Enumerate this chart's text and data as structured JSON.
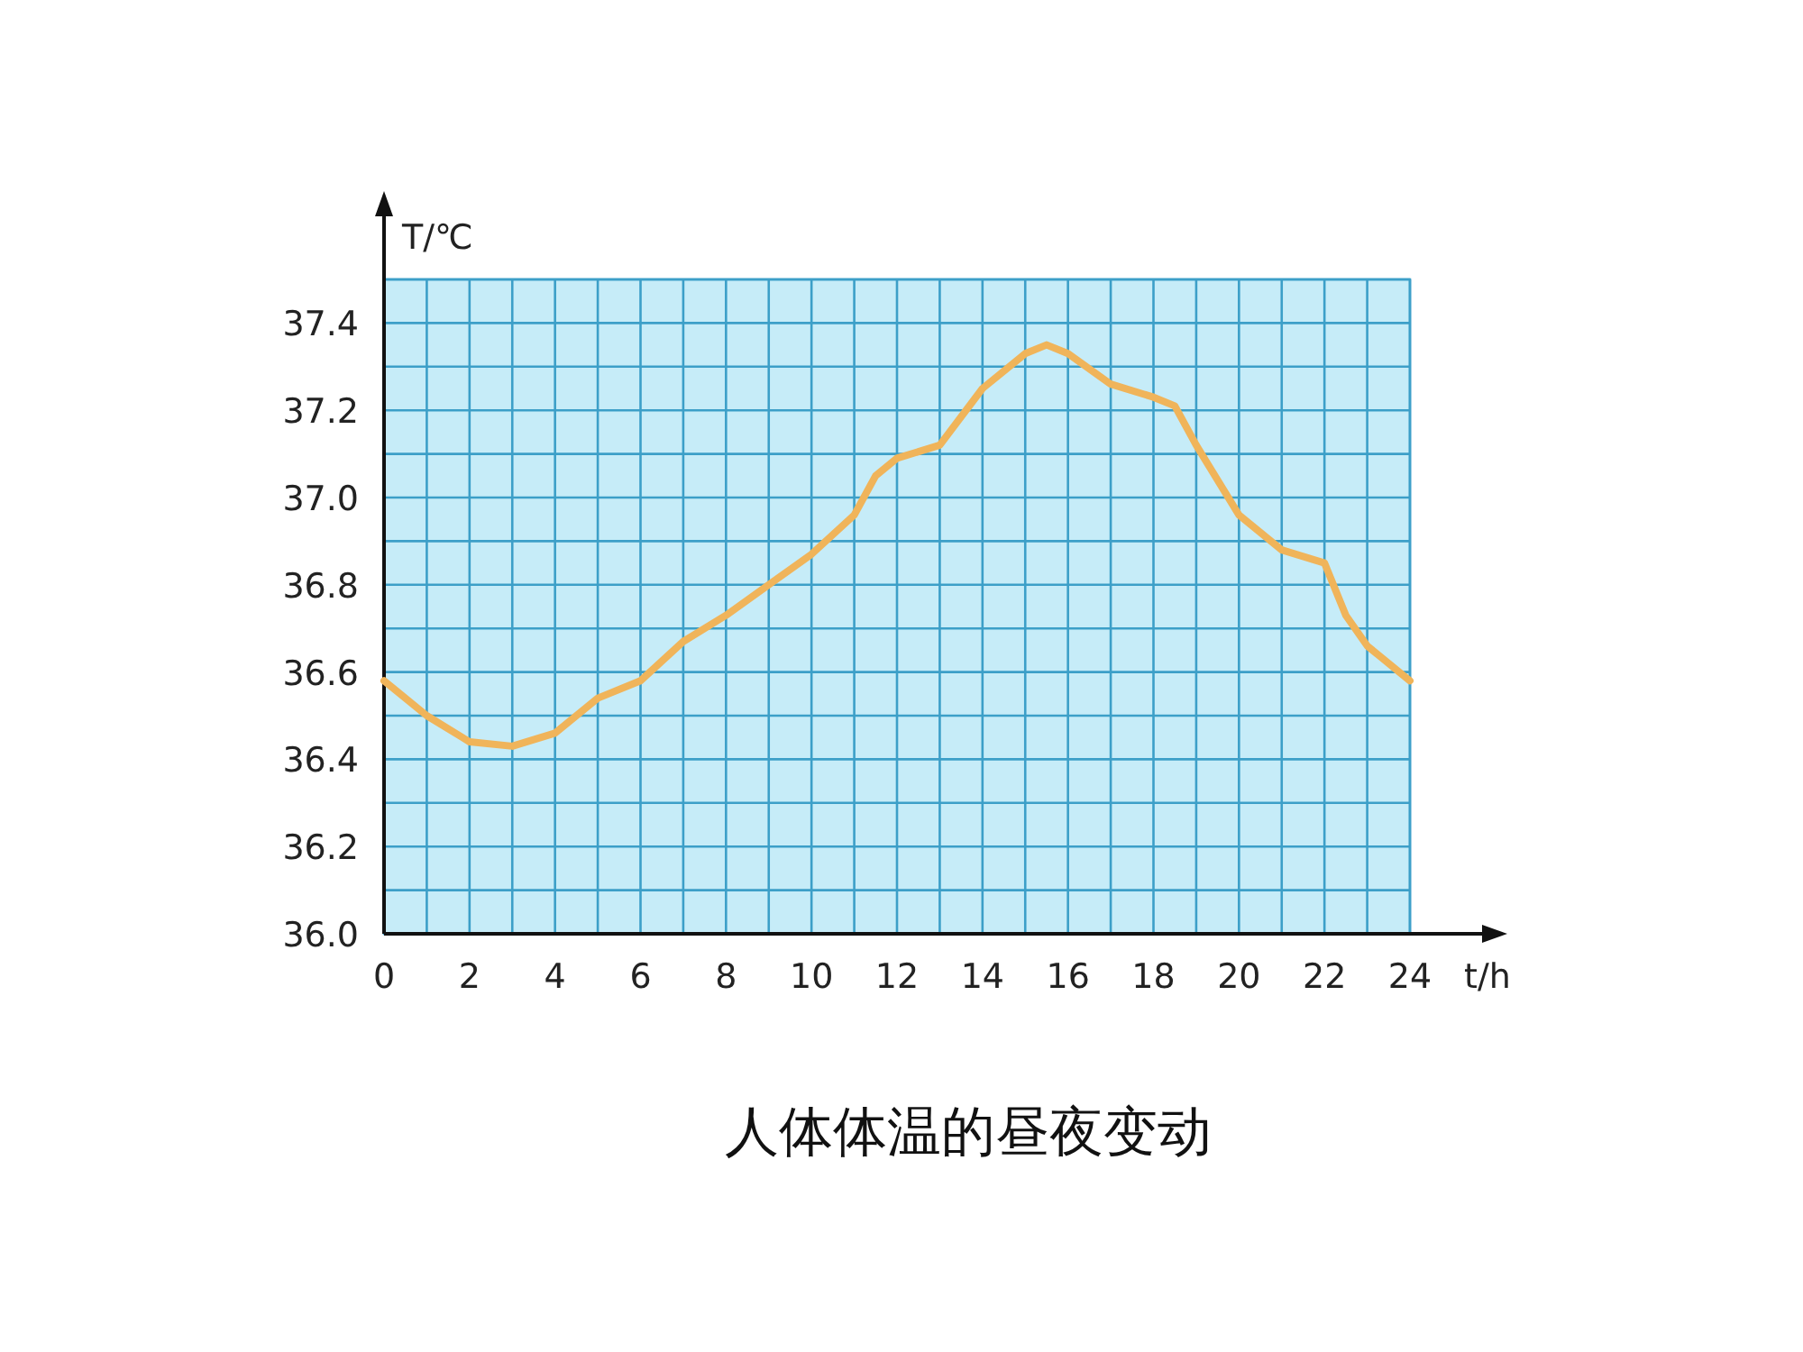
{
  "chart_data": {
    "type": "line",
    "title": "人体体温的昼夜变动",
    "xlabel": "t/h",
    "ylabel": "T/℃",
    "x": [
      0,
      1,
      2,
      3,
      4,
      5,
      6,
      7,
      8,
      9,
      10,
      11,
      11.5,
      12,
      13,
      14,
      15,
      15.5,
      16,
      17,
      18,
      18.5,
      19,
      20,
      21,
      22,
      22.5,
      23,
      24
    ],
    "series": [
      {
        "color": "#f0b45a",
        "values": [
          36.58,
          36.5,
          36.44,
          36.43,
          36.46,
          36.54,
          36.58,
          36.67,
          36.73,
          36.8,
          36.87,
          36.96,
          37.05,
          37.09,
          37.12,
          37.25,
          37.33,
          37.35,
          37.33,
          37.26,
          37.23,
          37.21,
          37.12,
          36.96,
          36.88,
          36.85,
          36.73,
          36.66,
          36.58
        ]
      }
    ],
    "xlim": [
      0,
      24
    ],
    "ylim": [
      36.0,
      37.5
    ],
    "xticks": [
      0,
      {
        "value": 1,
        "label": null
      },
      2,
      {
        "value": 3,
        "label": null
      },
      4,
      {
        "value": 5,
        "label": null
      },
      6,
      {
        "value": 7,
        "label": null
      },
      8,
      {
        "value": 9,
        "label": null
      },
      10,
      {
        "value": 11,
        "label": null
      },
      12,
      {
        "value": 13,
        "label": null
      },
      14,
      {
        "value": 15,
        "label": null
      },
      16,
      {
        "value": 17,
        "label": null
      },
      18,
      {
        "value": 19,
        "label": null
      },
      20,
      {
        "value": 21,
        "label": null
      },
      22,
      {
        "value": 23,
        "label": null
      },
      24
    ],
    "yticks": [
      {
        "value": 36.0,
        "label": "36.0"
      },
      {
        "value": 36.1,
        "label": null
      },
      {
        "value": 36.2,
        "label": "36.2"
      },
      {
        "value": 36.3,
        "label": null
      },
      {
        "value": 36.4,
        "label": "36.4"
      },
      {
        "value": 36.5,
        "label": null
      },
      {
        "value": 36.6,
        "label": "36.6"
      },
      {
        "value": 36.7,
        "label": null
      },
      {
        "value": 36.8,
        "label": "36.8"
      },
      {
        "value": 36.9,
        "label": null
      },
      {
        "value": 37.0,
        "label": "37.0"
      },
      {
        "value": 37.1,
        "label": null
      },
      {
        "value": 37.2,
        "label": "37.2"
      },
      {
        "value": 37.3,
        "label": null
      },
      {
        "value": 37.4,
        "label": "37.4"
      },
      {
        "value": 37.5,
        "label": null
      }
    ],
    "grid": true,
    "marker": "none",
    "line_style": "solid"
  }
}
